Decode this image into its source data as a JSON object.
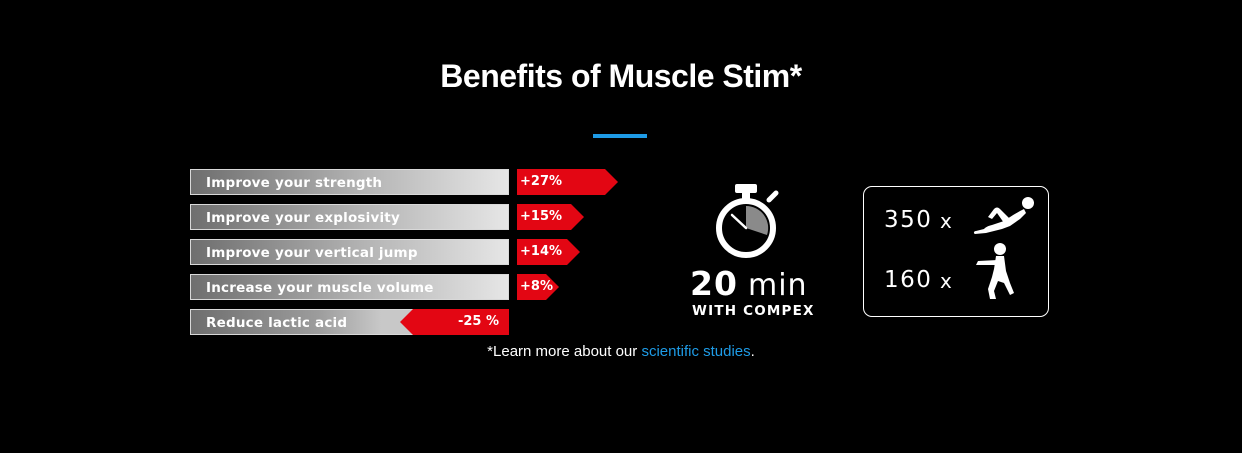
{
  "title": "Benefits of Muscle Stim*",
  "benefits": [
    {
      "label": "Improve your strength",
      "value": "+27%"
    },
    {
      "label": "Improve your explosivity",
      "value": "+15%"
    },
    {
      "label": "Improve your vertical jump",
      "value": "+14%"
    },
    {
      "label": "Increase your muscle volume",
      "value": "+8%"
    },
    {
      "label": "Reduce lactic acid",
      "value": "-25 %"
    }
  ],
  "footnote": {
    "prefix": "*Learn more about our ",
    "link": "scientific studies",
    "suffix": "."
  },
  "timer": {
    "number": "20",
    "unit": "min",
    "caption": "WITH COMPEX",
    "icon": "stopwatch-icon"
  },
  "reps": [
    {
      "count": "350",
      "x": "x",
      "icon": "situp-icon"
    },
    {
      "count": "160",
      "x": "x",
      "icon": "squat-icon"
    }
  ],
  "colors": {
    "accent_blue": "#1e9be6",
    "value_red": "#e30613",
    "background": "#000000"
  }
}
